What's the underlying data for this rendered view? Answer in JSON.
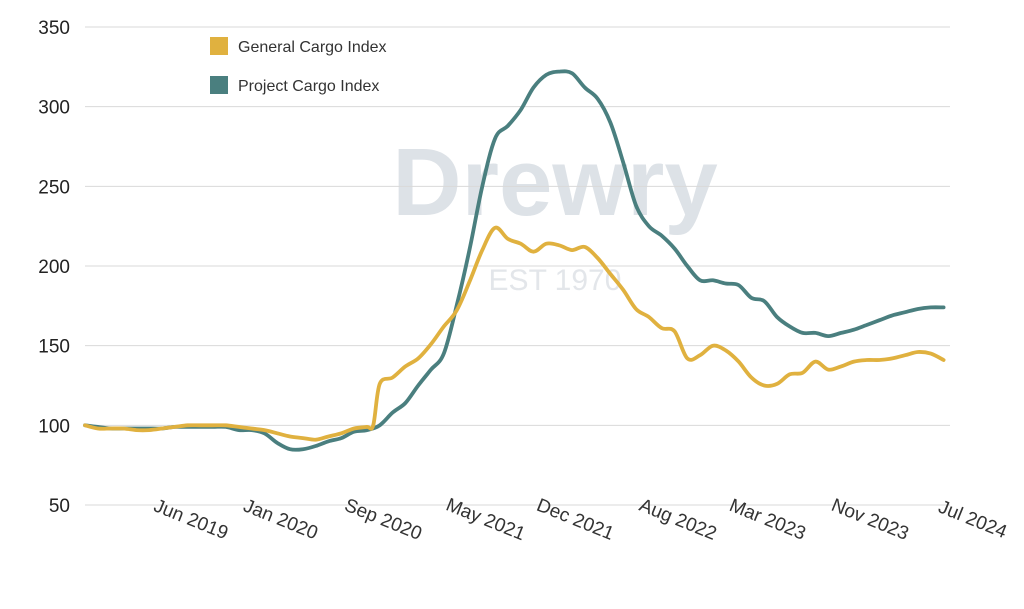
{
  "chart_data": {
    "type": "line",
    "title": "",
    "xlabel": "",
    "ylabel": "",
    "ylim": [
      50,
      350
    ],
    "yticks": [
      50,
      100,
      150,
      200,
      250,
      300,
      350
    ],
    "x_tick_labels": [
      "Jun 2019",
      "Jan 2020",
      "Sep 2020",
      "May 2021",
      "Dec 2021",
      "Aug 2022",
      "Mar 2023",
      "Nov 2023",
      "Jul 2024"
    ],
    "x_tick_dates": [
      "2019-06",
      "2020-01",
      "2020-09",
      "2021-05",
      "2021-12",
      "2022-08",
      "2023-03",
      "2023-11",
      "2024-07"
    ],
    "grid": "horizontal",
    "legend_position": "top-left",
    "watermark": {
      "main": "Drewry",
      "sub": "EST 1970"
    },
    "series": [
      {
        "name": "General Cargo Index",
        "color": "#e0b13f",
        "points": [
          [
            "2018-11",
            100
          ],
          [
            "2018-12",
            98
          ],
          [
            "2019-01",
            98
          ],
          [
            "2019-02",
            98
          ],
          [
            "2019-03",
            97
          ],
          [
            "2019-04",
            97
          ],
          [
            "2019-05",
            98
          ],
          [
            "2019-06",
            99
          ],
          [
            "2019-07",
            100
          ],
          [
            "2019-08",
            100
          ],
          [
            "2019-09",
            100
          ],
          [
            "2019-10",
            100
          ],
          [
            "2019-11",
            99
          ],
          [
            "2019-12",
            98
          ],
          [
            "2020-01",
            97
          ],
          [
            "2020-02",
            95
          ],
          [
            "2020-03",
            93
          ],
          [
            "2020-04",
            92
          ],
          [
            "2020-05",
            91
          ],
          [
            "2020-06",
            93
          ],
          [
            "2020-07",
            95
          ],
          [
            "2020-08",
            98
          ],
          [
            "2020-09",
            99
          ],
          [
            "2020-09-16",
            100
          ],
          [
            "2020-10",
            126
          ],
          [
            "2020-11",
            130
          ],
          [
            "2020-12",
            137
          ],
          [
            "2021-01",
            142
          ],
          [
            "2021-02",
            151
          ],
          [
            "2021-03",
            162
          ],
          [
            "2021-04",
            172
          ],
          [
            "2021-05",
            190
          ],
          [
            "2021-06",
            210
          ],
          [
            "2021-07",
            224
          ],
          [
            "2021-08",
            217
          ],
          [
            "2021-09",
            214
          ],
          [
            "2021-10",
            209
          ],
          [
            "2021-11",
            214
          ],
          [
            "2021-12",
            213
          ],
          [
            "2022-01",
            210
          ],
          [
            "2022-02",
            212
          ],
          [
            "2022-03",
            205
          ],
          [
            "2022-04",
            195
          ],
          [
            "2022-05",
            185
          ],
          [
            "2022-06",
            173
          ],
          [
            "2022-07",
            168
          ],
          [
            "2022-08",
            161
          ],
          [
            "2022-09",
            159
          ],
          [
            "2022-10",
            142
          ],
          [
            "2022-11",
            144
          ],
          [
            "2022-12",
            150
          ],
          [
            "2023-01",
            147
          ],
          [
            "2023-02",
            140
          ],
          [
            "2023-03",
            130
          ],
          [
            "2023-04",
            125
          ],
          [
            "2023-05",
            126
          ],
          [
            "2023-06",
            132
          ],
          [
            "2023-07",
            133
          ],
          [
            "2023-08",
            140
          ],
          [
            "2023-09",
            135
          ],
          [
            "2023-10",
            137
          ],
          [
            "2023-11",
            140
          ],
          [
            "2023-12",
            141
          ],
          [
            "2024-01",
            141
          ],
          [
            "2024-02",
            142
          ],
          [
            "2024-03",
            144
          ],
          [
            "2024-04",
            146
          ],
          [
            "2024-05",
            145
          ],
          [
            "2024-06",
            141
          ]
        ]
      },
      {
        "name": "Project Cargo Index",
        "color": "#4a7f7f",
        "points": [
          [
            "2018-11",
            100
          ],
          [
            "2018-12",
            99
          ],
          [
            "2019-01",
            98
          ],
          [
            "2019-02",
            98
          ],
          [
            "2019-03",
            98
          ],
          [
            "2019-04",
            98
          ],
          [
            "2019-05",
            98
          ],
          [
            "2019-06",
            99
          ],
          [
            "2019-07",
            99
          ],
          [
            "2019-08",
            99
          ],
          [
            "2019-09",
            99
          ],
          [
            "2019-10",
            99
          ],
          [
            "2019-11",
            97
          ],
          [
            "2019-12",
            97
          ],
          [
            "2020-01",
            95
          ],
          [
            "2020-02",
            89
          ],
          [
            "2020-03",
            85
          ],
          [
            "2020-04",
            85
          ],
          [
            "2020-05",
            87
          ],
          [
            "2020-06",
            90
          ],
          [
            "2020-07",
            92
          ],
          [
            "2020-08",
            96
          ],
          [
            "2020-09",
            97
          ],
          [
            "2020-10",
            100
          ],
          [
            "2020-11",
            108
          ],
          [
            "2020-12",
            114
          ],
          [
            "2021-01",
            125
          ],
          [
            "2021-02",
            135
          ],
          [
            "2021-03",
            145
          ],
          [
            "2021-04",
            175
          ],
          [
            "2021-05",
            210
          ],
          [
            "2021-06",
            250
          ],
          [
            "2021-07",
            280
          ],
          [
            "2021-08",
            288
          ],
          [
            "2021-09",
            298
          ],
          [
            "2021-10",
            312
          ],
          [
            "2021-11",
            320
          ],
          [
            "2021-12",
            322
          ],
          [
            "2022-01",
            321
          ],
          [
            "2022-02",
            312
          ],
          [
            "2022-03",
            305
          ],
          [
            "2022-04",
            290
          ],
          [
            "2022-05",
            265
          ],
          [
            "2022-06",
            238
          ],
          [
            "2022-07",
            225
          ],
          [
            "2022-08",
            219
          ],
          [
            "2022-09",
            211
          ],
          [
            "2022-10",
            200
          ],
          [
            "2022-11",
            191
          ],
          [
            "2022-12",
            191
          ],
          [
            "2023-01",
            189
          ],
          [
            "2023-02",
            188
          ],
          [
            "2023-03",
            180
          ],
          [
            "2023-04",
            178
          ],
          [
            "2023-05",
            168
          ],
          [
            "2023-06",
            162
          ],
          [
            "2023-07",
            158
          ],
          [
            "2023-08",
            158
          ],
          [
            "2023-09",
            156
          ],
          [
            "2023-10",
            158
          ],
          [
            "2023-11",
            160
          ],
          [
            "2023-12",
            163
          ],
          [
            "2024-01",
            166
          ],
          [
            "2024-02",
            169
          ],
          [
            "2024-03",
            171
          ],
          [
            "2024-04",
            173
          ],
          [
            "2024-05",
            174
          ],
          [
            "2024-06",
            174
          ]
        ]
      }
    ]
  }
}
